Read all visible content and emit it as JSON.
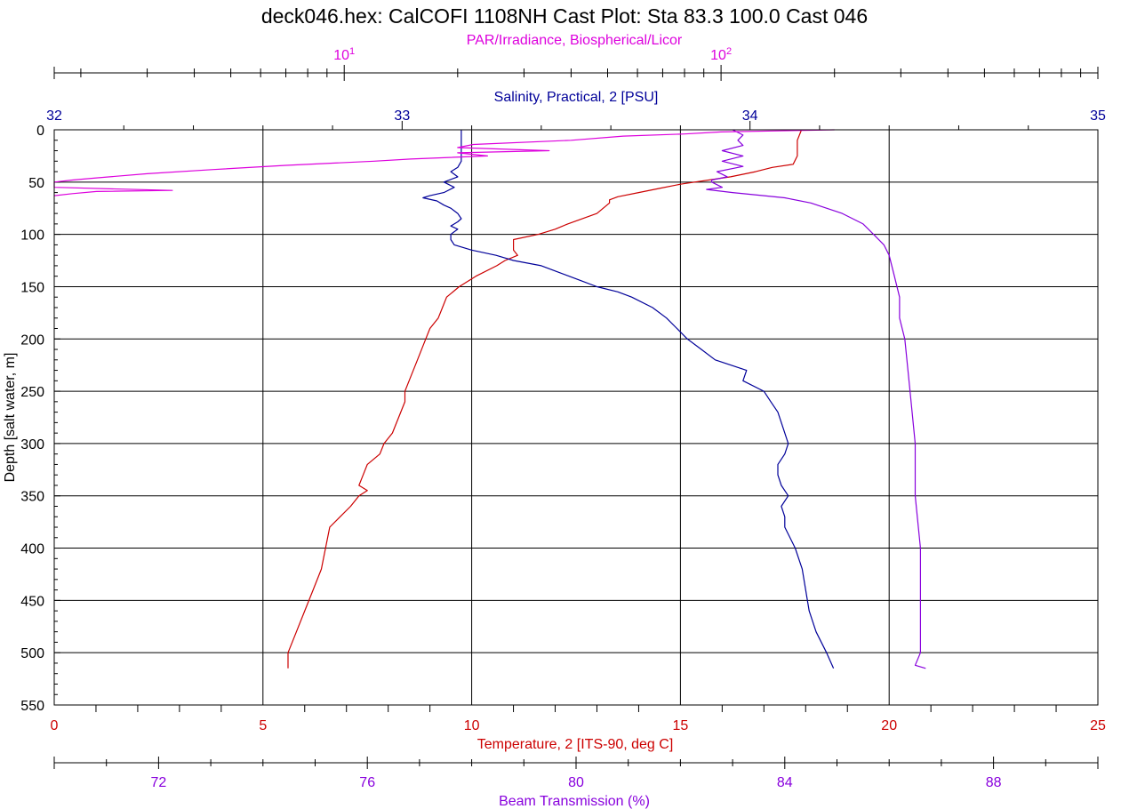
{
  "title": "deck046.hex: CalCOFI 1108NH Cast Plot: Sta 83.3  100.0  Cast 046",
  "colors": {
    "temperature": "#cc0000",
    "salinity": "#000099",
    "par": "#dd00dd",
    "beam": "#8800dd",
    "grid": "#000000"
  },
  "chart_data": {
    "type": "line",
    "y_axis": {
      "label": "Depth [salt water, m]",
      "range": [
        0,
        550
      ],
      "inverted": true,
      "ticks": [
        0,
        50,
        100,
        150,
        200,
        250,
        300,
        350,
        400,
        450,
        500,
        550
      ]
    },
    "axes": [
      {
        "id": "par",
        "position": "top-outer",
        "label": "PAR/Irradiance, Biospherical/Licor",
        "scale": "log",
        "range": [
          1.7,
          1000
        ],
        "major_ticks": [
          10,
          100
        ],
        "major_labels": [
          "10",
          "10"
        ],
        "major_exponents": [
          "1",
          "2"
        ]
      },
      {
        "id": "salinity",
        "position": "top-inner",
        "label": "Salinity, Practical, 2 [PSU]",
        "scale": "linear",
        "range": [
          32,
          35
        ],
        "ticks": [
          32,
          33,
          34,
          35
        ]
      },
      {
        "id": "temperature",
        "position": "bottom-inner",
        "label": "Temperature, 2 [ITS-90, deg C]",
        "scale": "linear",
        "range": [
          0,
          25
        ],
        "ticks": [
          0,
          5,
          10,
          15,
          20,
          25
        ]
      },
      {
        "id": "beam",
        "position": "bottom-outer",
        "label": "Beam Transmission (%)",
        "scale": "linear",
        "range": [
          70,
          90
        ],
        "ticks": [
          72,
          76,
          80,
          84,
          88
        ]
      }
    ],
    "grid": true,
    "series": [
      {
        "id": "temperature",
        "axis": "temperature",
        "depth": [
          0,
          10,
          25,
          33,
          36,
          40,
          45,
          52,
          56,
          60,
          64,
          67,
          70,
          80,
          90,
          95,
          100,
          105,
          110,
          115,
          120,
          125,
          130,
          140,
          145,
          150,
          160,
          170,
          180,
          190,
          200,
          220,
          240,
          250,
          260,
          270,
          290,
          300,
          310,
          320,
          330,
          340,
          345,
          350,
          360,
          380,
          400,
          420,
          440,
          460,
          480,
          500,
          515
        ],
        "values": [
          17.9,
          17.8,
          17.8,
          17.7,
          17.2,
          16.8,
          16.2,
          15.0,
          14.5,
          14.0,
          13.5,
          13.3,
          13.3,
          13.0,
          12.3,
          12.0,
          11.6,
          11.0,
          11.0,
          11.0,
          11.1,
          10.8,
          10.6,
          10.1,
          9.9,
          9.7,
          9.4,
          9.3,
          9.2,
          9.0,
          8.9,
          8.7,
          8.5,
          8.4,
          8.4,
          8.3,
          8.1,
          7.9,
          7.8,
          7.5,
          7.4,
          7.3,
          7.5,
          7.3,
          7.1,
          6.6,
          6.5,
          6.4,
          6.2,
          6.0,
          5.8,
          5.6,
          5.6
        ]
      },
      {
        "id": "salinity",
        "axis": "salinity",
        "depth": [
          0,
          10,
          20,
          30,
          36,
          40,
          45,
          50,
          55,
          60,
          63,
          65,
          68,
          72,
          75,
          80,
          85,
          88,
          92,
          95,
          100,
          105,
          110,
          115,
          120,
          125,
          130,
          135,
          140,
          145,
          150,
          155,
          160,
          170,
          180,
          190,
          200,
          210,
          220,
          230,
          240,
          250,
          260,
          270,
          290,
          300,
          310,
          320,
          330,
          340,
          350,
          360,
          370,
          380,
          400,
          420,
          440,
          460,
          480,
          500,
          515
        ],
        "values": [
          33.17,
          33.17,
          33.17,
          33.17,
          33.16,
          33.14,
          33.16,
          33.12,
          33.15,
          33.12,
          33.08,
          33.06,
          33.1,
          33.12,
          33.14,
          33.16,
          33.17,
          33.16,
          33.14,
          33.16,
          33.14,
          33.14,
          33.15,
          33.2,
          33.27,
          33.32,
          33.4,
          33.44,
          33.48,
          33.52,
          33.56,
          33.62,
          33.66,
          33.72,
          33.76,
          33.79,
          33.82,
          33.86,
          33.9,
          33.99,
          33.98,
          34.04,
          34.06,
          34.08,
          34.1,
          34.11,
          34.1,
          34.08,
          34.08,
          34.09,
          34.11,
          34.09,
          34.1,
          34.1,
          34.13,
          34.15,
          34.16,
          34.17,
          34.19,
          34.22,
          34.24
        ]
      },
      {
        "id": "beam",
        "axis": "beam",
        "depth": [
          0,
          5,
          10,
          15,
          20,
          25,
          30,
          35,
          40,
          45,
          48,
          50,
          55,
          57,
          60,
          63,
          65,
          70,
          80,
          90,
          100,
          110,
          120,
          140,
          160,
          180,
          200,
          250,
          300,
          350,
          400,
          450,
          500,
          512,
          515
        ],
        "values": [
          83.0,
          83.2,
          83.1,
          83.2,
          82.8,
          83.2,
          82.8,
          83.2,
          82.7,
          82.9,
          82.6,
          82.6,
          82.8,
          82.5,
          83.0,
          83.6,
          84.0,
          84.5,
          85.1,
          85.5,
          85.7,
          85.9,
          86.0,
          86.1,
          86.2,
          86.2,
          86.3,
          86.4,
          86.5,
          86.5,
          86.6,
          86.6,
          86.6,
          86.5,
          86.7
        ]
      },
      {
        "id": "par",
        "axis": "par",
        "depth": [
          0,
          2,
          4,
          6,
          10,
          14,
          17,
          20,
          22,
          25,
          28,
          30,
          34,
          38,
          42,
          46,
          48,
          50,
          55,
          58,
          59,
          61,
          63
        ],
        "values": [
          200,
          100,
          80,
          55,
          40,
          22,
          20,
          35,
          20,
          24,
          15,
          12,
          7,
          4.5,
          3,
          2.2,
          1.9,
          1.7,
          1.7,
          3.5,
          2.2,
          1.9,
          1.7
        ]
      }
    ]
  }
}
